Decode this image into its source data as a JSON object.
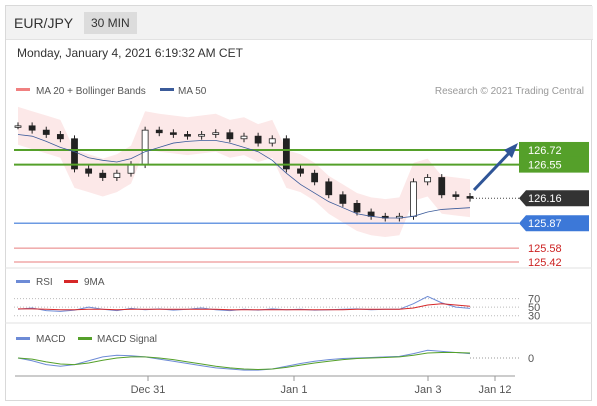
{
  "header": {
    "pair": "EUR/JPY",
    "timeframe": "30 MIN"
  },
  "date_text": "Monday, January 4, 2021 6:19:32 AM CET",
  "colors": {
    "bollinger": "#f08080",
    "ma50": "#3b5b9a",
    "resistance": "#55a02a",
    "support": "#3c78d8",
    "red_line": "#e87d7d",
    "rsi": "#6d8bd6",
    "rsi_ma": "#d62728",
    "macd": "#6d8bd6",
    "macd_signal": "#55a02a",
    "arrow": "#2f5597",
    "candle": "#222222"
  },
  "legend": {
    "ma20": "MA 20 + Bollinger Bands",
    "ma50": "MA 50",
    "rsi": "RSI",
    "rsi_ma": "9MA",
    "macd": "MACD",
    "macd_signal": "MACD Signal"
  },
  "credit": "Research © 2021 Trading Central",
  "chart_data": [
    {
      "type": "candlestick",
      "levels": [
        {
          "value": 126.72,
          "label": "126.72",
          "style": "resistance"
        },
        {
          "value": 126.55,
          "label": "126.55",
          "style": "resistance"
        },
        {
          "value": 126.16,
          "label": "126.16",
          "style": "last"
        },
        {
          "value": 125.87,
          "label": "125.87",
          "style": "support"
        },
        {
          "value": 125.58,
          "label": "125.58",
          "style": "red"
        },
        {
          "value": 125.42,
          "label": "125.42",
          "style": "red"
        }
      ],
      "ylim": [
        125.35,
        127.3
      ],
      "close": [
        127.0,
        126.95,
        126.9,
        126.85,
        126.5,
        126.45,
        126.4,
        126.45,
        126.55,
        126.95,
        126.92,
        126.9,
        126.88,
        126.9,
        126.92,
        126.85,
        126.88,
        126.8,
        126.85,
        126.5,
        126.45,
        126.35,
        126.2,
        126.1,
        126.0,
        125.95,
        125.93,
        125.95,
        126.35,
        126.4,
        126.2,
        126.18,
        126.16
      ],
      "ma50": [
        126.9,
        126.88,
        126.82,
        126.75,
        126.7,
        126.63,
        126.6,
        126.58,
        126.62,
        126.7,
        126.75,
        126.8,
        126.82,
        126.83,
        126.83,
        126.8,
        126.75,
        126.7,
        126.6,
        126.45,
        126.32,
        126.22,
        126.12,
        126.05,
        125.98,
        125.95,
        125.93,
        125.93,
        125.95,
        126.0,
        126.03,
        126.04,
        126.05
      ],
      "x_ticks": [
        "Dec 31",
        "Jan 1",
        "Jan 3",
        "Jan 12"
      ]
    },
    {
      "type": "line",
      "name": "RSI",
      "y_ticks": [
        "70",
        "50",
        "30"
      ],
      "rsi": [
        45,
        48,
        42,
        40,
        43,
        50,
        45,
        42,
        47,
        44,
        46,
        43,
        45,
        48,
        44,
        42,
        45,
        43,
        46,
        44,
        45,
        43,
        44,
        45,
        46,
        44,
        45,
        45,
        58,
        75,
        60,
        50,
        47
      ],
      "ma9": [
        46,
        46,
        45,
        44,
        44,
        45,
        45,
        44,
        45,
        45,
        45,
        45,
        45,
        45,
        45,
        44,
        44,
        44,
        44,
        44,
        44,
        44,
        44,
        44,
        45,
        45,
        45,
        45,
        48,
        55,
        58,
        55,
        52
      ]
    },
    {
      "type": "line",
      "name": "MACD",
      "y_ticks": [
        "0"
      ],
      "macd": [
        0.0,
        -0.05,
        -0.12,
        -0.15,
        -0.12,
        -0.05,
        0.02,
        0.05,
        0.04,
        0.02,
        -0.02,
        -0.06,
        -0.1,
        -0.14,
        -0.18,
        -0.2,
        -0.22,
        -0.22,
        -0.2,
        -0.15,
        -0.1,
        -0.06,
        -0.03,
        -0.01,
        0.0,
        0.01,
        0.02,
        0.03,
        0.08,
        0.14,
        0.12,
        0.1,
        0.08
      ],
      "signal": [
        0.0,
        -0.02,
        -0.07,
        -0.11,
        -0.12,
        -0.09,
        -0.04,
        0.0,
        0.02,
        0.02,
        0.0,
        -0.03,
        -0.07,
        -0.11,
        -0.15,
        -0.18,
        -0.2,
        -0.21,
        -0.2,
        -0.17,
        -0.13,
        -0.09,
        -0.06,
        -0.03,
        -0.01,
        0.0,
        0.01,
        0.02,
        0.05,
        0.09,
        0.1,
        0.1,
        0.09
      ]
    }
  ]
}
